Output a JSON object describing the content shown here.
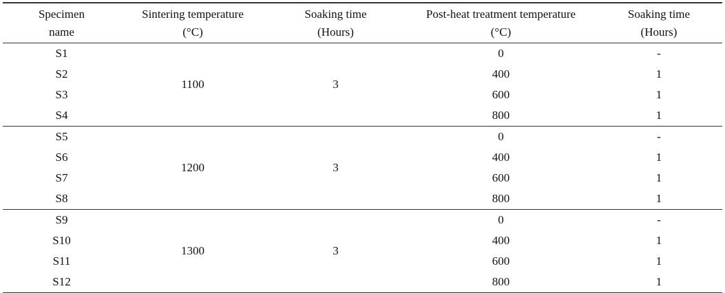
{
  "table": {
    "header": [
      [
        "Specimen",
        "name"
      ],
      [
        "Sintering temperature",
        "(°C)"
      ],
      [
        "Soaking time",
        "(Hours)"
      ],
      [
        "Post-heat treatment temperature",
        "(°C)"
      ],
      [
        "Soaking time",
        "(Hours)"
      ]
    ],
    "groups": [
      {
        "sintering_temperature": "1100",
        "soaking_time": "3",
        "rows": [
          [
            "S1",
            "0",
            "-"
          ],
          [
            "S2",
            "400",
            "1"
          ],
          [
            "S3",
            "600",
            "1"
          ],
          [
            "S4",
            "800",
            "1"
          ]
        ]
      },
      {
        "sintering_temperature": "1200",
        "soaking_time": "3",
        "rows": [
          [
            "S5",
            "0",
            "-"
          ],
          [
            "S6",
            "400",
            "1"
          ],
          [
            "S7",
            "600",
            "1"
          ],
          [
            "S8",
            "800",
            "1"
          ]
        ]
      },
      {
        "sintering_temperature": "1300",
        "soaking_time": "3",
        "rows": [
          [
            "S9",
            "0",
            "-"
          ],
          [
            "S10",
            "400",
            "1"
          ],
          [
            "S11",
            "600",
            "1"
          ],
          [
            "S12",
            "800",
            "1"
          ]
        ]
      }
    ]
  }
}
